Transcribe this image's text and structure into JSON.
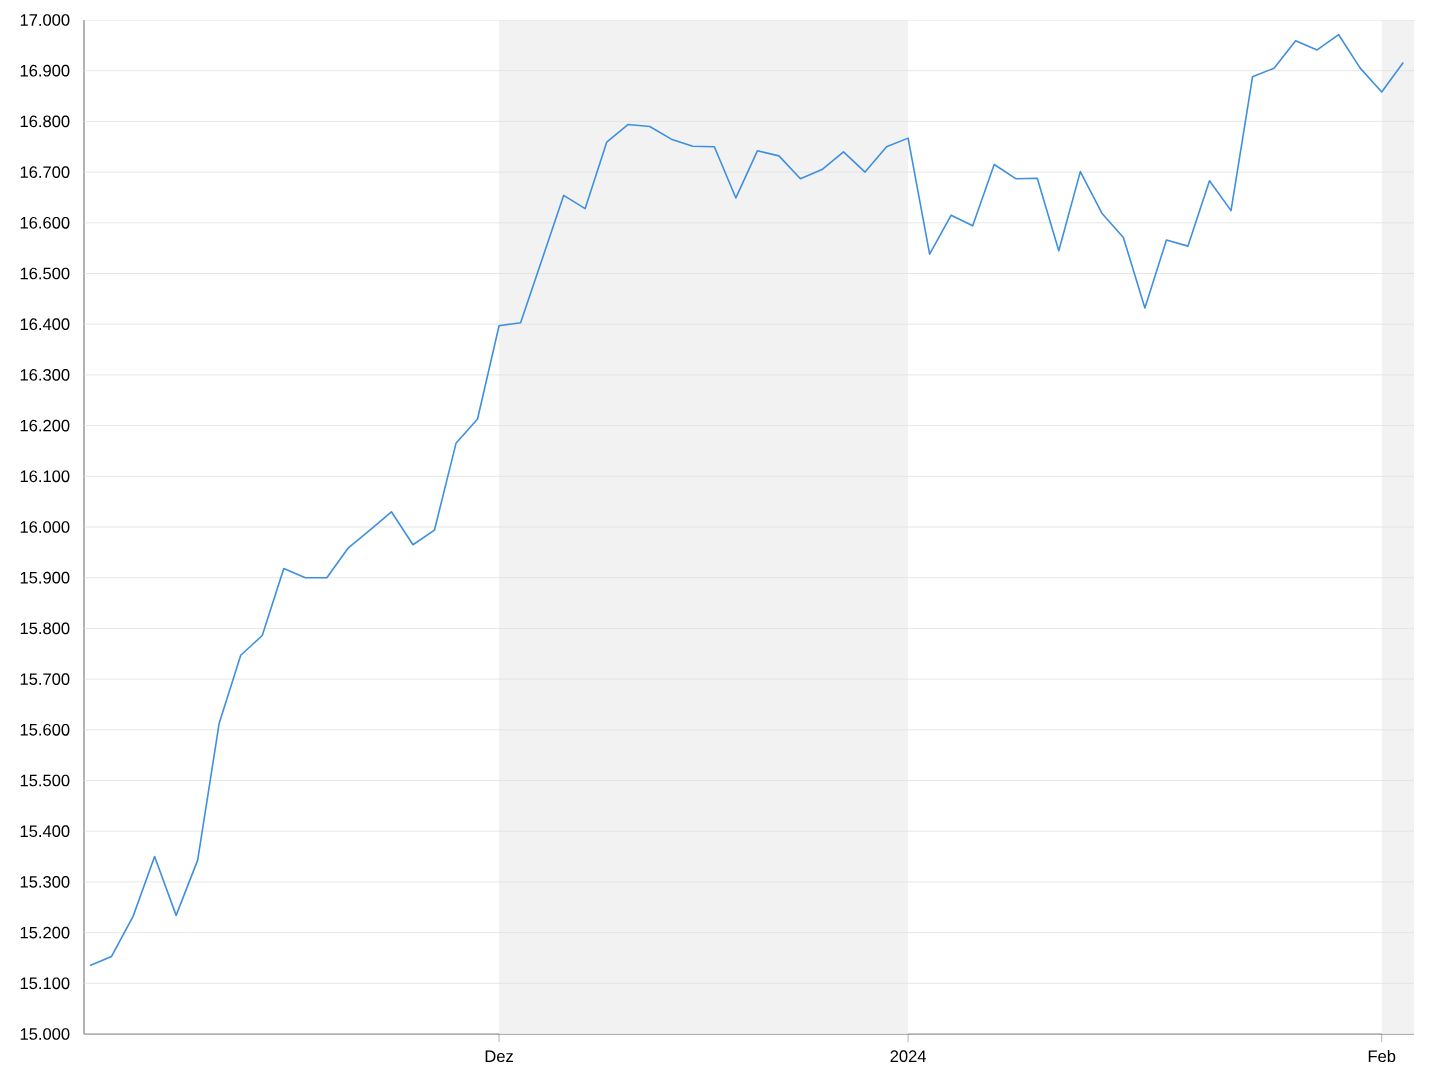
{
  "chart_data": {
    "type": "line",
    "color": "#3d8fe0",
    "categories": [
      null,
      null,
      null,
      null,
      null,
      null,
      null,
      null,
      null,
      null,
      null,
      null,
      null,
      null,
      null,
      null,
      null,
      null,
      null,
      "Dez",
      null,
      null,
      null,
      null,
      null,
      null,
      null,
      null,
      null,
      null,
      null,
      null,
      null,
      null,
      null,
      null,
      null,
      null,
      "2024",
      null,
      null,
      null,
      null,
      null,
      null,
      null,
      null,
      null,
      null,
      null,
      null,
      null,
      null,
      null,
      null,
      null,
      null,
      null,
      null,
      null,
      "Feb",
      null
    ],
    "values": [
      15135,
      15153,
      15232,
      15350,
      15234,
      15343,
      15613,
      15747,
      15786,
      15918,
      15900,
      15900,
      15959,
      15994,
      16030,
      15965,
      15994,
      16165,
      16213,
      16397,
      16403,
      16528,
      16654,
      16628,
      16759,
      16794,
      16790,
      16765,
      16751,
      16750,
      16649,
      16742,
      16732,
      16687,
      16705,
      16740,
      16700,
      16750,
      16767,
      16538,
      16615,
      16594,
      16715,
      16687,
      16688,
      16545,
      16701,
      16619,
      16571,
      16432,
      16566,
      16554,
      16683,
      16624,
      16888,
      16905,
      16959,
      16941,
      16971,
      16905,
      16858,
      16916
    ],
    "ylim": [
      15000,
      17000
    ],
    "yticks": [
      {
        "value": 15000,
        "label": "15.000"
      },
      {
        "value": 15100,
        "label": "15.100"
      },
      {
        "value": 15200,
        "label": "15.200"
      },
      {
        "value": 15300,
        "label": "15.300"
      },
      {
        "value": 15400,
        "label": "15.400"
      },
      {
        "value": 15500,
        "label": "15.500"
      },
      {
        "value": 15600,
        "label": "15.600"
      },
      {
        "value": 15700,
        "label": "15.700"
      },
      {
        "value": 15800,
        "label": "15.800"
      },
      {
        "value": 15900,
        "label": "15.900"
      },
      {
        "value": 16000,
        "label": "16.000"
      },
      {
        "value": 16100,
        "label": "16.100"
      },
      {
        "value": 16200,
        "label": "16.200"
      },
      {
        "value": 16300,
        "label": "16.300"
      },
      {
        "value": 16400,
        "label": "16.400"
      },
      {
        "value": 16500,
        "label": "16.500"
      },
      {
        "value": 16600,
        "label": "16.600"
      },
      {
        "value": 16700,
        "label": "16.700"
      },
      {
        "value": 16800,
        "label": "16.800"
      },
      {
        "value": 16900,
        "label": "16.900"
      },
      {
        "value": 17000,
        "label": "17.000"
      }
    ],
    "grid": "y",
    "bands": [
      {
        "axis": "x",
        "from": "Dez",
        "to": "2024",
        "color": "#f2f2f2"
      }
    ]
  }
}
